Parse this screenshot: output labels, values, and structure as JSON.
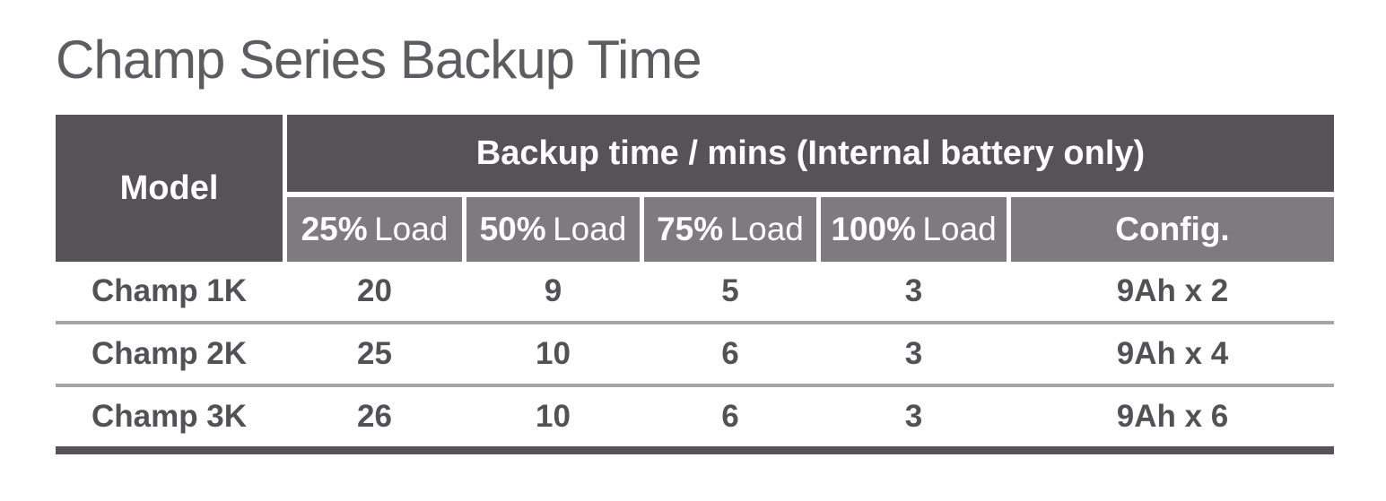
{
  "title": "Champ Series Backup Time",
  "table": {
    "model_header": "Model",
    "group_header": "Backup time / mins (Internal battery only)",
    "sub_headers": [
      {
        "strong": "25%",
        "regular": "Load"
      },
      {
        "strong": "50%",
        "regular": "Load"
      },
      {
        "strong": "75%",
        "regular": "Load"
      },
      {
        "strong": "100%",
        "regular": "Load"
      }
    ],
    "config_header": "Config.",
    "rows": [
      {
        "model": "Champ 1K",
        "load_25": "20",
        "load_50": "9",
        "load_75": "5",
        "load_100": "3",
        "config": "9Ah x 2"
      },
      {
        "model": "Champ 2K",
        "load_25": "25",
        "load_50": "10",
        "load_75": "6",
        "load_100": "3",
        "config": "9Ah x 4"
      },
      {
        "model": "Champ 3K",
        "load_25": "26",
        "load_50": "10",
        "load_75": "6",
        "load_100": "3",
        "config": "9Ah x 6"
      }
    ],
    "colors": {
      "header_dark_bg": "#565356",
      "subheader_bg": "#7e7b7e",
      "header_text": "#ffffff",
      "body_text": "#525154",
      "row_divider": "#a6a4a6",
      "bottom_border": "#565356",
      "title_text": "#5d5c60"
    }
  }
}
